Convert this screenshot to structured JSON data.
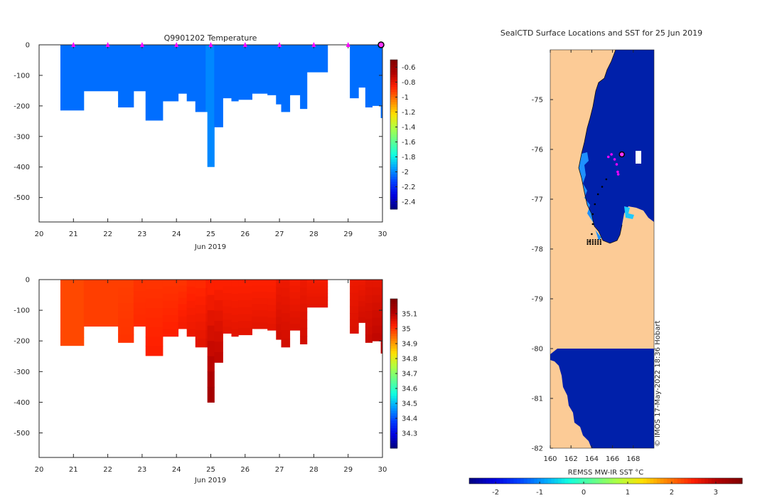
{
  "chart_data": [
    {
      "type": "heatmap",
      "name": "temperature-section",
      "title": "Q9901202  Temperature",
      "xlabel": "Jun 2019",
      "ylabel": "",
      "xlim": [
        20,
        30
      ],
      "ylim": [
        -580,
        0
      ],
      "xticks": [
        "20",
        "21",
        "22",
        "23",
        "24",
        "25",
        "26",
        "27",
        "28",
        "29",
        "30"
      ],
      "yticks": [
        "0",
        "-100",
        "-200",
        "-300",
        "-400",
        "-500"
      ],
      "ytick_values": [
        0,
        -100,
        -200,
        -300,
        -400,
        -500
      ],
      "colorbar": {
        "range": [
          -2.5,
          -0.5
        ],
        "ticks": [
          "-0.6",
          "-0.8",
          "-1",
          "-1.2",
          "-1.4",
          "-1.6",
          "-1.8",
          "-2",
          "-2.2",
          "-2.4"
        ],
        "tick_values": [
          -0.6,
          -0.8,
          -1,
          -1.2,
          -1.4,
          -1.6,
          -1.8,
          -2,
          -2.2,
          -2.4
        ],
        "colors": [
          "#00007f",
          "#0000e0",
          "#0040ff",
          "#00a0ff",
          "#10ffe0",
          "#60ff90",
          "#b0ff40",
          "#ffe000",
          "#ff8000",
          "#ff2000",
          "#b00000",
          "#800000"
        ]
      },
      "profiles": [
        {
          "x": 20.62,
          "depth": 215,
          "value": -2.05
        },
        {
          "x": 21.3,
          "depth": 152,
          "value": -2.05
        },
        {
          "x": 22.3,
          "depth": 205,
          "value": -2.05
        },
        {
          "x": 22.75,
          "depth": 152,
          "value": -2.05
        },
        {
          "x": 23.1,
          "depth": 248,
          "value": -2.05
        },
        {
          "x": 23.6,
          "depth": 185,
          "value": -2.05
        },
        {
          "x": 24.05,
          "depth": 160,
          "value": -2.05
        },
        {
          "x": 24.3,
          "depth": 185,
          "value": -2.05
        },
        {
          "x": 24.55,
          "depth": 220,
          "value": -2.05
        },
        {
          "x": 24.85,
          "depth": 220,
          "value": -2.0
        },
        {
          "x": 24.9,
          "depth": 400,
          "value": -2.0
        },
        {
          "x": 25.1,
          "depth": 270,
          "value": -2.05
        },
        {
          "x": 25.35,
          "depth": 175,
          "value": -2.05
        },
        {
          "x": 25.6,
          "depth": 185,
          "value": -2.05
        },
        {
          "x": 25.8,
          "depth": 180,
          "value": -2.05
        },
        {
          "x": 26.2,
          "depth": 160,
          "value": -2.05
        },
        {
          "x": 26.65,
          "depth": 165,
          "value": -2.05
        },
        {
          "x": 26.9,
          "depth": 195,
          "value": -2.05
        },
        {
          "x": 27.05,
          "depth": 220,
          "value": -2.05
        },
        {
          "x": 27.3,
          "depth": 165,
          "value": -2.05
        },
        {
          "x": 27.6,
          "depth": 210,
          "value": -2.05
        },
        {
          "x": 27.8,
          "depth": 90,
          "value": -2.05
        },
        {
          "x": 28.4,
          "depth": 0,
          "value": null
        },
        {
          "x": 29.05,
          "depth": 175,
          "value": -2.05
        },
        {
          "x": 29.3,
          "depth": 140,
          "value": -2.05
        },
        {
          "x": 29.5,
          "depth": 205,
          "value": -2.05
        },
        {
          "x": 29.7,
          "depth": 200,
          "value": -2.05
        },
        {
          "x": 29.95,
          "depth": 240,
          "value": -2.05
        }
      ],
      "surface_markers": [
        21,
        22,
        23,
        24,
        25,
        26,
        27,
        28,
        29
      ],
      "current_marker": 30
    },
    {
      "type": "heatmap",
      "name": "salinity-section",
      "title": "",
      "xlabel": "Jun 2019",
      "ylabel": "",
      "xlim": [
        20,
        30
      ],
      "ylim": [
        -580,
        0
      ],
      "xticks": [
        "20",
        "21",
        "22",
        "23",
        "24",
        "25",
        "26",
        "27",
        "28",
        "29",
        "30"
      ],
      "yticks": [
        "0",
        "-100",
        "-200",
        "-300",
        "-400",
        "-500"
      ],
      "ytick_values": [
        0,
        -100,
        -200,
        -300,
        -400,
        -500
      ],
      "colorbar": {
        "range": [
          34.2,
          35.2
        ],
        "ticks": [
          "35.1",
          "35",
          "34.9",
          "34.8",
          "34.7",
          "34.6",
          "34.5",
          "34.4",
          "34.3"
        ],
        "tick_values": [
          35.1,
          35.0,
          34.9,
          34.8,
          34.7,
          34.6,
          34.5,
          34.4,
          34.3
        ],
        "colors": [
          "#00007f",
          "#0000e0",
          "#0040ff",
          "#00a0ff",
          "#10ffe0",
          "#60ff90",
          "#b0ff40",
          "#ffe000",
          "#ff8000",
          "#ff2000",
          "#b00000",
          "#800000"
        ]
      },
      "profiles": [
        {
          "x": 20.62,
          "depth": 215,
          "value": 34.98,
          "deep": 34.98
        },
        {
          "x": 21.3,
          "depth": 152,
          "value": 34.99,
          "deep": 34.99
        },
        {
          "x": 22.3,
          "depth": 205,
          "value": 34.99,
          "deep": 35.0
        },
        {
          "x": 22.75,
          "depth": 152,
          "value": 35.0,
          "deep": 35.01
        },
        {
          "x": 23.1,
          "depth": 248,
          "value": 35.0,
          "deep": 35.02
        },
        {
          "x": 23.6,
          "depth": 185,
          "value": 35.0,
          "deep": 35.02
        },
        {
          "x": 24.05,
          "depth": 160,
          "value": 35.0,
          "deep": 35.03
        },
        {
          "x": 24.3,
          "depth": 185,
          "value": 35.01,
          "deep": 35.04
        },
        {
          "x": 24.55,
          "depth": 220,
          "value": 35.01,
          "deep": 35.05
        },
        {
          "x": 24.85,
          "depth": 220,
          "value": 35.02,
          "deep": 35.06
        },
        {
          "x": 24.9,
          "depth": 400,
          "value": 35.02,
          "deep": 35.13
        },
        {
          "x": 25.1,
          "depth": 270,
          "value": 35.02,
          "deep": 35.09
        },
        {
          "x": 25.35,
          "depth": 175,
          "value": 35.02,
          "deep": 35.05
        },
        {
          "x": 25.6,
          "depth": 185,
          "value": 35.02,
          "deep": 35.05
        },
        {
          "x": 25.8,
          "depth": 180,
          "value": 35.02,
          "deep": 35.05
        },
        {
          "x": 26.2,
          "depth": 160,
          "value": 35.02,
          "deep": 35.05
        },
        {
          "x": 26.65,
          "depth": 165,
          "value": 35.02,
          "deep": 35.05
        },
        {
          "x": 26.9,
          "depth": 195,
          "value": 35.04,
          "deep": 35.07
        },
        {
          "x": 27.05,
          "depth": 220,
          "value": 35.04,
          "deep": 35.07
        },
        {
          "x": 27.3,
          "depth": 165,
          "value": 35.03,
          "deep": 35.06
        },
        {
          "x": 27.6,
          "depth": 210,
          "value": 35.04,
          "deep": 35.07
        },
        {
          "x": 27.8,
          "depth": 90,
          "value": 35.03,
          "deep": 35.05
        },
        {
          "x": 28.4,
          "depth": 0,
          "value": null,
          "deep": null
        },
        {
          "x": 29.05,
          "depth": 175,
          "value": 35.04,
          "deep": 35.06
        },
        {
          "x": 29.3,
          "depth": 140,
          "value": 35.04,
          "deep": 35.07
        },
        {
          "x": 29.5,
          "depth": 205,
          "value": 35.05,
          "deep": 35.08
        },
        {
          "x": 29.7,
          "depth": 200,
          "value": 35.05,
          "deep": 35.09
        },
        {
          "x": 29.95,
          "depth": 240,
          "value": 35.05,
          "deep": 35.1
        }
      ]
    },
    {
      "type": "heatmap",
      "name": "sst-map",
      "title": "SealCTD Surface Locations and SST for 25 Jun 2019",
      "xlabel": "",
      "ylabel": "",
      "xlim": [
        160,
        170
      ],
      "ylim": [
        -82,
        -74
      ],
      "xticks": [
        "160",
        "162",
        "164",
        "166",
        "168"
      ],
      "xtick_values": [
        160,
        162,
        164,
        166,
        168
      ],
      "yticks": [
        "-75",
        "-76",
        "-77",
        "-78",
        "-79",
        "-80",
        "-81",
        "-82"
      ],
      "ytick_values": [
        -75,
        -76,
        -77,
        -78,
        -79,
        -80,
        -81,
        -82
      ],
      "land_color": "#fccb96",
      "ocean_color": "#0020aa",
      "colorbar": {
        "label": "REMSS MW-IR SST °C",
        "range": [
          -2.6,
          3.6
        ],
        "ticks": [
          "-2",
          "-1",
          "0",
          "1",
          "2",
          "3"
        ],
        "tick_values": [
          -2,
          -1,
          0,
          1,
          2,
          3
        ],
        "colors": [
          "#00007f",
          "#0000e0",
          "#0040ff",
          "#00a0ff",
          "#10ffe0",
          "#60ff90",
          "#b0ff40",
          "#ffe000",
          "#ff8000",
          "#ff2000",
          "#b00000",
          "#800000"
        ]
      },
      "track": [
        {
          "lon": 163.8,
          "lat": -77.85
        },
        {
          "lon": 164.0,
          "lat": -77.7
        },
        {
          "lon": 164.1,
          "lat": -77.5
        },
        {
          "lon": 164.1,
          "lat": -77.3
        },
        {
          "lon": 164.3,
          "lat": -77.1
        },
        {
          "lon": 164.6,
          "lat": -76.9
        },
        {
          "lon": 165.0,
          "lat": -76.75
        },
        {
          "lon": 165.4,
          "lat": -76.6
        }
      ],
      "surface_locations": [
        {
          "lon": 165.6,
          "lat": -76.15
        },
        {
          "lon": 165.9,
          "lat": -76.1
        },
        {
          "lon": 166.2,
          "lat": -76.2
        },
        {
          "lon": 166.4,
          "lat": -76.3
        },
        {
          "lon": 166.5,
          "lat": -76.45
        },
        {
          "lon": 166.55,
          "lat": -76.5
        }
      ],
      "current_location": {
        "lon": 166.9,
        "lat": -76.1
      },
      "credit": "© IMOS 17-May-2022 18:36 Hobart"
    }
  ]
}
